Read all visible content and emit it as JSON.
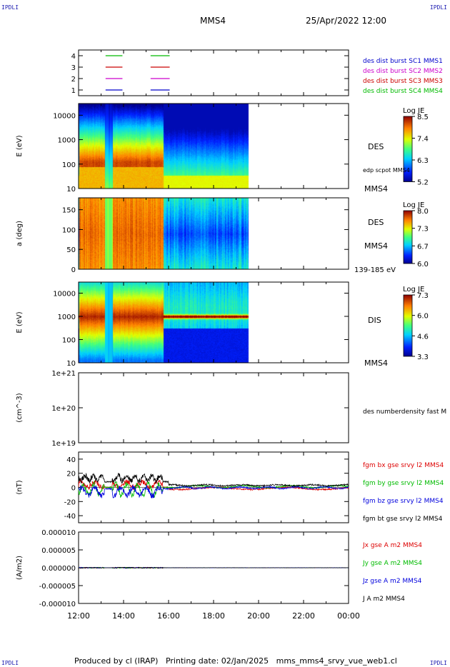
{
  "header": {
    "spacecraft": "MMS4",
    "datetime": "25/Apr/2022 12:00",
    "corner_tl": "IPDLI",
    "corner_tr": "IPDLI",
    "corner_bl": "IPDLI",
    "corner_br": "IPDLI"
  },
  "footer": {
    "text": "Produced by cl (IRAP)   Printing date: 02/Jan/2025   mms_mms4_srvy_vue_web1.cl"
  },
  "colors": {
    "mms1": "#0000cc",
    "mms2": "#cc00cc",
    "mms3": "#cc0000",
    "mms4": "#00bb00",
    "bx": "#dd0000",
    "by": "#00bb00",
    "bz": "#0000dd",
    "bt": "#000000"
  },
  "chart_data": [
    {
      "type": "line",
      "panel": "burst",
      "ylim": [
        0.5,
        4.5
      ],
      "yticks": [
        "1",
        "2",
        "3",
        "4"
      ],
      "legend": [
        {
          "text": "des dist burst SC1 MMS1",
          "color": "#0000cc"
        },
        {
          "text": "des dist burst SC2 MMS2",
          "color": "#cc00cc"
        },
        {
          "text": "des dist burst SC3 MMS3",
          "color": "#cc0000"
        },
        {
          "text": "des dist burst SC4 MMS4",
          "color": "#00bb00"
        }
      ],
      "intervals": [
        {
          "sc": 1,
          "from": 13.2,
          "to": 13.95
        },
        {
          "sc": 1,
          "from": 15.2,
          "to": 16.05
        },
        {
          "sc": 2,
          "from": 13.2,
          "to": 13.95
        },
        {
          "sc": 2,
          "from": 15.2,
          "to": 16.05
        },
        {
          "sc": 3,
          "from": 13.2,
          "to": 13.95
        },
        {
          "sc": 3,
          "from": 15.2,
          "to": 16.05
        },
        {
          "sc": 4,
          "from": 13.2,
          "to": 13.95
        },
        {
          "sc": 4,
          "from": 15.2,
          "to": 16.05
        }
      ]
    },
    {
      "type": "heatmap",
      "panel": "des_energy",
      "ylabel": "E (eV)",
      "yscale": "log",
      "ylim": [
        10,
        30000
      ],
      "yticks": [
        "10",
        "100",
        "1000",
        "10000"
      ],
      "label": "DES",
      "sublabel": "edp scpot MMS4",
      "sc_label": "MMS4",
      "colorbar": {
        "title": "Log JE",
        "ticks": [
          "5.2",
          "6.3",
          "7.4",
          "8.5"
        ]
      }
    },
    {
      "type": "heatmap",
      "panel": "des_pitch",
      "ylabel": "a (deg)",
      "ylim": [
        0,
        180
      ],
      "yticks": [
        "0",
        "50",
        "100",
        "150"
      ],
      "label": "DES",
      "sc_label": "MMS4",
      "energy_range": "139-185 eV",
      "colorbar": {
        "title": "Log JE",
        "ticks": [
          "6.0",
          "6.7",
          "7.3",
          "8.0"
        ]
      }
    },
    {
      "type": "heatmap",
      "panel": "dis_energy",
      "ylabel": "E (eV)",
      "yscale": "log",
      "ylim": [
        10,
        30000
      ],
      "yticks": [
        "10",
        "100",
        "1000",
        "10000"
      ],
      "label": "DIS",
      "sc_label": "MMS4",
      "colorbar": {
        "title": "Log JE",
        "ticks": [
          "3.3",
          "4.6",
          "6.0",
          "7.3"
        ]
      }
    },
    {
      "type": "line",
      "panel": "density",
      "ylabel": "(cm^-3)",
      "yscale": "log",
      "ylim": [
        1e+19,
        1e+21
      ],
      "yticks": [
        "1e+19",
        "1e+20",
        "1e+21"
      ],
      "legend": [
        {
          "text": "des numberdensity fast M",
          "color": "#000000"
        }
      ]
    },
    {
      "type": "line",
      "panel": "fgm",
      "ylabel": "(nT)",
      "ylim": [
        -50,
        50
      ],
      "yticks": [
        "-40",
        "-20",
        "0",
        "20",
        "40"
      ],
      "legend": [
        {
          "text": "fgm bx gse srvy l2 MMS4",
          "color": "#dd0000"
        },
        {
          "text": "fgm by gse srvy l2 MMS4",
          "color": "#00bb00"
        },
        {
          "text": "fgm bz gse srvy l2 MMS4",
          "color": "#0000dd"
        },
        {
          "text": "fgm bt gse srvy l2 MMS4",
          "color": "#000000"
        }
      ]
    },
    {
      "type": "line",
      "panel": "current",
      "ylabel": "(A/m2)",
      "ylim": [
        -1e-05,
        1e-05
      ],
      "yticks": [
        "-0.000010",
        "-0.000005",
        "0.000000",
        "0.000005",
        "0.000010"
      ],
      "legend": [
        {
          "text": "Jx gse A m2 MMS4",
          "color": "#dd0000"
        },
        {
          "text": "Jy gse A m2 MMS4",
          "color": "#00bb00"
        },
        {
          "text": "Jz gse A m2 MMS4",
          "color": "#0000dd"
        },
        {
          "text": "J A m2 MMS4",
          "color": "#000000"
        }
      ],
      "xticks": [
        "12:00",
        "14:00",
        "16:00",
        "18:00",
        "20:00",
        "22:00",
        "00:00"
      ],
      "xlim": [
        12,
        24
      ]
    }
  ]
}
